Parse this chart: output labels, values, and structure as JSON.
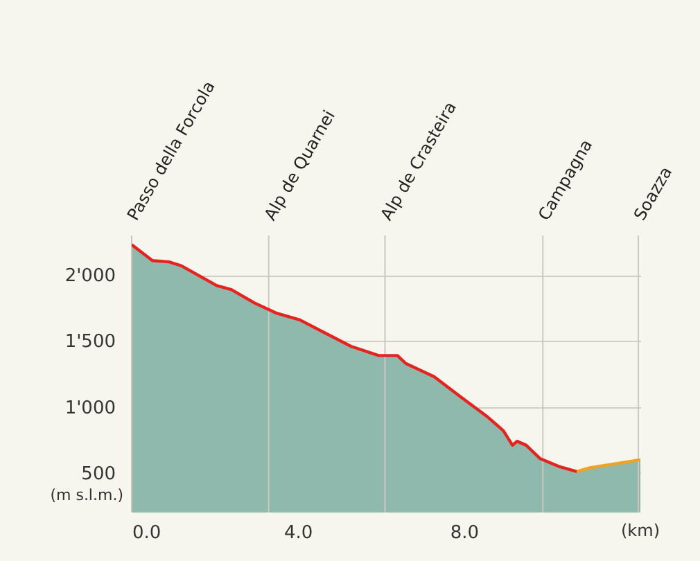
{
  "chart_data": {
    "type": "area",
    "xlabel": "(km)",
    "ylabel": "(m s.l.m.)",
    "x": [
      0,
      0.5,
      0.9,
      1.2,
      2.05,
      2.4,
      2.95,
      3.5,
      4.05,
      4.6,
      5.28,
      5.95,
      6.4,
      6.6,
      7.28,
      7.95,
      8.55,
      8.95,
      9.17,
      9.28,
      9.5,
      9.83,
      10.28,
      10.72,
      11.05,
      12.25
    ],
    "series": [
      {
        "color": "#8fb9ad",
        "values": [
          2230,
          2110,
          2100,
          2070,
          1920,
          1890,
          1790,
          1710,
          1660,
          1570,
          1460,
          1390,
          1390,
          1330,
          1230,
          1070,
          930,
          820,
          710,
          740,
          710,
          610,
          550,
          510,
          540,
          600
        ]
      },
      {
        "type": "line",
        "color": "#e52420",
        "values": [
          2230,
          2110,
          2100,
          2070,
          1920,
          1890,
          1790,
          1710,
          1660,
          1570,
          1460,
          1390,
          1390,
          1330,
          1230,
          1070,
          930,
          820,
          710,
          740,
          710,
          610,
          550,
          510,
          null,
          null
        ]
      },
      {
        "type": "line",
        "color": "#f0a323",
        "values": [
          null,
          null,
          null,
          null,
          null,
          null,
          null,
          null,
          null,
          null,
          null,
          null,
          null,
          null,
          null,
          null,
          null,
          null,
          null,
          null,
          null,
          null,
          null,
          510,
          540,
          600
        ]
      }
    ],
    "xlim": [
      0,
      12.25
    ],
    "xticks": [
      {
        "value": 0,
        "label": "0.0"
      },
      {
        "value": 4,
        "label": "4.0"
      },
      {
        "value": 8,
        "label": "8.0"
      }
    ],
    "ylim": [
      200,
      2300
    ],
    "yticks": [
      500,
      {
        "value": 1000,
        "label": "1'000"
      },
      {
        "value": 1500,
        "label": "1'500"
      },
      {
        "value": 2000,
        "label": "2'000"
      }
    ],
    "grid": "y",
    "ref_lines": [
      {
        "axis": "x",
        "value": 0,
        "label": "Passo della Forcola",
        "color": "#c8c8c0"
      },
      {
        "axis": "x",
        "value": 3.3,
        "label": "Alp de Quarnei",
        "color": "#c8c8c0"
      },
      {
        "axis": "x",
        "value": 6.1,
        "label": "Alp de Crasteira",
        "color": "#c8c8c0"
      },
      {
        "axis": "x",
        "value": 9.9,
        "label": "Campagna",
        "color": "#c8c8c0"
      },
      {
        "axis": "x",
        "value": 12.2,
        "label": "Soazza",
        "color": "#c8c8c0"
      }
    ]
  }
}
